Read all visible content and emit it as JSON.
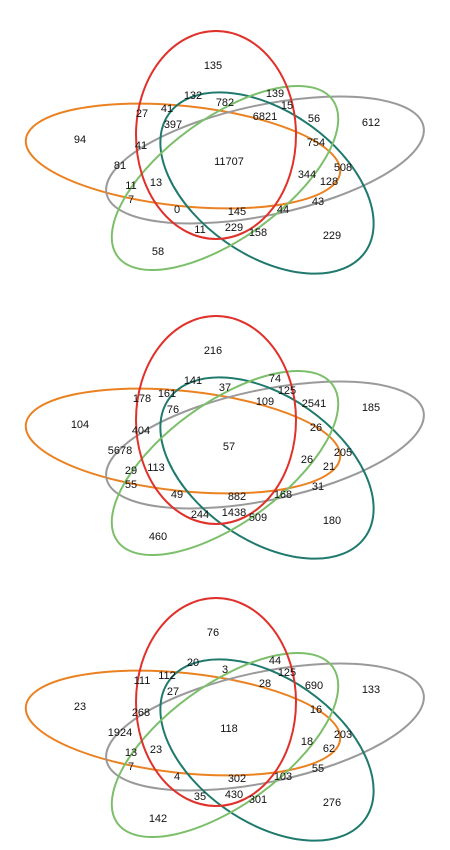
{
  "colors": {
    "red": "#e0312b",
    "orange": "#ea8222",
    "gray": "#9a9a9a",
    "teal": "#1f7a6d",
    "green": "#7cbf6a"
  },
  "diagrams": [
    {
      "counts": [
        "135",
        "94",
        "612",
        "229",
        "58",
        "27",
        "41",
        "397",
        "132",
        "782",
        "139",
        "15",
        "56",
        "6821",
        "41",
        "754",
        "81",
        "11707",
        "508",
        "128",
        "344",
        "11",
        "13",
        "7",
        "0",
        "145",
        "44",
        "43",
        "11",
        "229",
        "158"
      ]
    },
    {
      "counts": [
        "216",
        "104",
        "185",
        "180",
        "460",
        "178",
        "161",
        "76",
        "141",
        "37",
        "74",
        "125",
        "2541",
        "109",
        "404",
        "26",
        "5678",
        "57",
        "205",
        "21",
        "26",
        "29",
        "113",
        "55",
        "49",
        "882",
        "168",
        "31",
        "244",
        "1438",
        "509"
      ]
    },
    {
      "counts": [
        "76",
        "23",
        "133",
        "276",
        "142",
        "111",
        "112",
        "27",
        "20",
        "3",
        "44",
        "125",
        "690",
        "28",
        "268",
        "16",
        "1924",
        "118",
        "203",
        "62",
        "18",
        "13",
        "23",
        "7",
        "4",
        "302",
        "103",
        "55",
        "35",
        "430",
        "301"
      ]
    }
  ]
}
